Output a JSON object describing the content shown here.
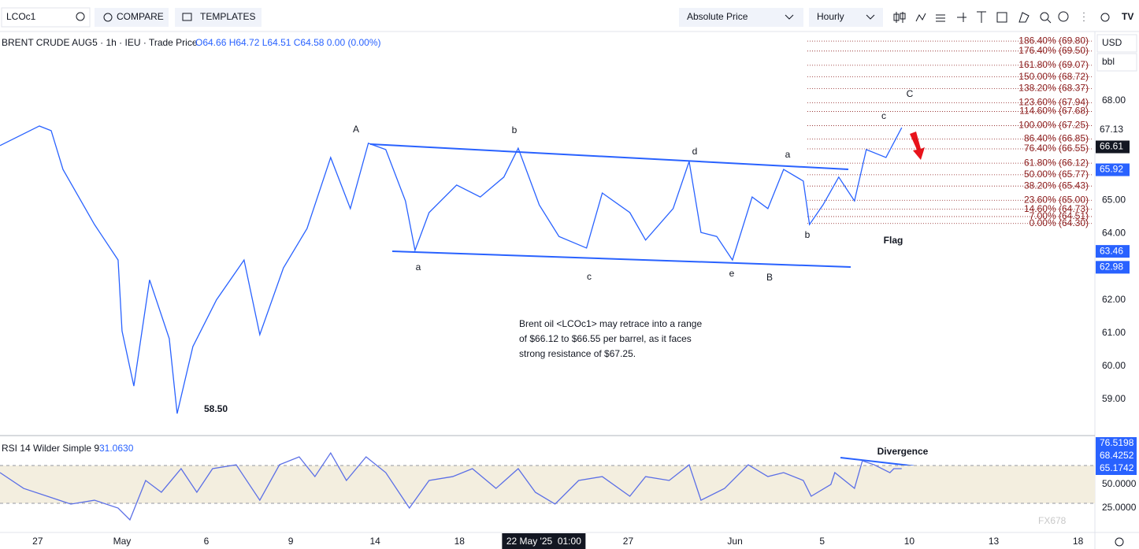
{
  "toolbar": {
    "symbol": "LCOc1",
    "compare": "COMPARE",
    "templates": "TEMPLATES",
    "price_mode": "Absolute Price",
    "interval": "Hourly",
    "currency": "USD",
    "unit": "bbl"
  },
  "legend": {
    "title": "BRENT CRUDE AUG5 · 1h · IEU · Trade Price",
    "ohlc": "O64.66 H64.72 L64.51 C64.58 0.00 (0.00%)"
  },
  "annotation": {
    "lines": [
      "Brent oil <LCOc1> may retrace into a range",
      "of $66.12 to $66.55 per barrel, as it faces",
      "strong resistance of $67.25."
    ]
  },
  "wave_labels": [
    "A",
    "b",
    "d",
    "a",
    "c",
    "C",
    "a",
    "c",
    "e",
    "B",
    "b",
    "Flag",
    "58.50"
  ],
  "divergence_label": "Divergence",
  "watermark": "FX678",
  "chart_data": [
    {
      "type": "line",
      "color": "#2962ff",
      "x": [
        -1.34,
        0.06,
        0.48,
        0.9,
        1.46,
        2.02,
        2.86,
        3.0,
        3.42,
        3.98,
        4.68,
        4.96,
        5.52,
        6.36,
        7.34,
        7.9,
        8.74,
        9.58,
        10.42,
        11.12,
        11.76,
        12.38,
        13.08,
        13.42,
        13.92,
        14.9,
        15.74,
        16.58,
        17.09,
        17.84,
        18.54,
        19.52,
        20.08,
        21.06,
        21.62,
        22.6,
        23.17,
        23.59,
        24.15,
        24.71,
        25.41,
        25.97,
        26.53,
        27.23,
        27.45,
        27.93,
        28.49,
        29.05,
        29.47,
        30.17,
        30.73
      ],
      "values": [
        66.65,
        67.24,
        67.1,
        65.93,
        65.1,
        64.27,
        63.2,
        61.06,
        59.4,
        62.6,
        60.83,
        58.57,
        60.59,
        62.0,
        63.2,
        60.95,
        62.96,
        64.15,
        66.29,
        64.75,
        66.72,
        66.53,
        64.98,
        63.49,
        64.63,
        65.46,
        65.1,
        65.7,
        66.57,
        64.86,
        63.91,
        63.56,
        65.22,
        64.63,
        63.8,
        64.75,
        66.17,
        64.03,
        63.91,
        63.2,
        65.1,
        64.75,
        65.93,
        65.58,
        64.27,
        64.86,
        65.7,
        64.98,
        66.53,
        66.29,
        67.19
      ],
      "xlim": [
        -1.34,
        37.6
      ],
      "ylim": [
        57.93,
        69.97
      ],
      "yticks": [
        {
          "value": 68,
          "label": "68.00"
        },
        {
          "value": 65,
          "label": "65.00"
        },
        {
          "value": 64,
          "label": "64.00"
        },
        {
          "value": 62,
          "label": "62.00"
        },
        {
          "value": 61,
          "label": "61.00"
        },
        {
          "value": 60,
          "label": "60.00"
        },
        {
          "value": 59,
          "label": "59.00"
        }
      ],
      "xticks": [
        {
          "value": 0,
          "label": "27"
        },
        {
          "value": 3,
          "label": "May"
        },
        {
          "value": 6,
          "label": "6"
        },
        {
          "value": 9,
          "label": "9"
        },
        {
          "value": 12,
          "label": "14"
        },
        {
          "value": 15,
          "label": "18"
        },
        {
          "value": 21,
          "label": "27"
        },
        {
          "value": 24.8,
          "label": "Jun"
        },
        {
          "value": 27.9,
          "label": "5"
        },
        {
          "value": 31,
          "label": "10"
        },
        {
          "value": 34,
          "label": "13"
        },
        {
          "value": 37,
          "label": "18"
        }
      ],
      "crosshair_x": {
        "value": 18,
        "label": "22 May '25  01:00"
      },
      "price_labels": [
        {
          "value": 67.13,
          "label": "67.13",
          "color": "none"
        },
        {
          "value": 66.61,
          "label": "66.61",
          "color": "#131722"
        },
        {
          "value": 65.92,
          "label": "65.92",
          "color": "#2962ff"
        },
        {
          "value": 63.46,
          "label": "63.46",
          "color": "#2962ff"
        },
        {
          "value": 62.98,
          "label": "62.98",
          "color": "#2962ff"
        }
      ],
      "fib_color": "#8b1a1a",
      "fib_levels": [
        {
          "value": 69.8,
          "label": "186.40% (69.80)"
        },
        {
          "value": 69.5,
          "label": "176.40% (69.50)"
        },
        {
          "value": 69.07,
          "label": "161.80% (69.07)"
        },
        {
          "value": 68.72,
          "label": "150.00% (68.72)"
        },
        {
          "value": 68.37,
          "label": "138.20% (68.37)"
        },
        {
          "value": 67.94,
          "label": "123.60% (67.94)"
        },
        {
          "value": 67.68,
          "label": "114.60% (67.68)"
        },
        {
          "value": 67.25,
          "label": "100.00% (67.25)"
        },
        {
          "value": 66.85,
          "label": "86.40% (66.85)"
        },
        {
          "value": 66.55,
          "label": "76.40% (66.55)"
        },
        {
          "value": 66.12,
          "label": "61.80% (66.12)"
        },
        {
          "value": 65.77,
          "label": "50.00% (65.77)"
        },
        {
          "value": 65.43,
          "label": "38.20% (65.43)"
        },
        {
          "value": 65.0,
          "label": "23.60% (65.00)"
        },
        {
          "value": 64.73,
          "label": "14.60% (64.73)"
        },
        {
          "value": 64.51,
          "label": "7.00% (64.51)"
        },
        {
          "value": 64.3,
          "label": "0.00% (64.30)"
        }
      ]
    },
    {
      "type": "line",
      "title": "RSI 14 Wilder Simple 9",
      "current": {
        "value": 31.063,
        "label": "31.0630"
      },
      "color": "#5b6fe6",
      "x": [
        -1.34,
        -0.5,
        0.34,
        1.18,
        2.02,
        2.86,
        3.28,
        3.84,
        4.4,
        5.1,
        5.66,
        6.22,
        7.06,
        7.9,
        8.6,
        9.3,
        9.86,
        10.42,
        10.98,
        11.68,
        12.38,
        13.22,
        13.92,
        14.76,
        15.46,
        16.3,
        17.09,
        17.7,
        18.4,
        19.24,
        20.08,
        21.06,
        21.62,
        22.46,
        23.17,
        23.59,
        24.43,
        25.27,
        25.97,
        26.53,
        27.23,
        27.51,
        28.21,
        28.35,
        29.05,
        29.33,
        29.75,
        30.31,
        30.45,
        30.73
      ],
      "values": [
        62.5,
        45.8,
        37.5,
        29.2,
        33.3,
        25,
        12.5,
        54.2,
        41.7,
        66.7,
        41.7,
        66.7,
        70.8,
        33.3,
        70.8,
        79.2,
        58.3,
        83.3,
        54.2,
        79.2,
        62.5,
        25,
        54.2,
        58.3,
        66.7,
        45.8,
        66.7,
        41.7,
        29.2,
        54.2,
        58.3,
        37.5,
        58.3,
        54.2,
        70.8,
        33.3,
        45.8,
        70.8,
        58.3,
        62.5,
        54.2,
        37.5,
        50,
        62.5,
        45.8,
        75,
        70.8,
        62.5,
        66.7,
        66.7
      ],
      "xlim": [
        -1.34,
        37.6
      ],
      "ylim": [
        0,
        101.7
      ],
      "yticks": [
        {
          "value": 50,
          "label": "50.0000"
        },
        {
          "value": 25,
          "label": "25.0000"
        }
      ],
      "band": [
        30,
        70
      ],
      "band_color": "#f3eedf",
      "price_labels": [
        {
          "value": 76.5198,
          "label": "76.5198",
          "color": "#2962ff"
        },
        {
          "value": 68.4252,
          "label": "68.4252",
          "color": "#2962ff"
        },
        {
          "value": 65.1742,
          "label": "65.1742",
          "color": "#2962ff"
        }
      ]
    }
  ]
}
